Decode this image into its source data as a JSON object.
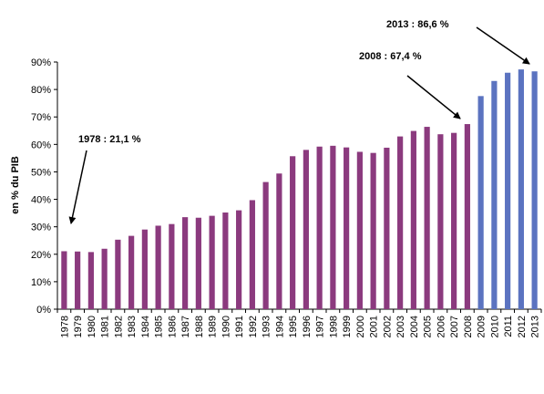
{
  "chart_data": {
    "type": "bar",
    "title": "",
    "xlabel": "",
    "ylabel": "en % du PIB",
    "ylim": [
      0,
      90
    ],
    "yticks": [
      "0%",
      "10%",
      "20%",
      "30%",
      "40%",
      "50%",
      "60%",
      "70%",
      "80%",
      "90%"
    ],
    "grid": false,
    "legend": "none",
    "categories": [
      "1978",
      "1979",
      "1980",
      "1981",
      "1982",
      "1983",
      "1984",
      "1985",
      "1986",
      "1987",
      "1988",
      "1989",
      "1990",
      "1991",
      "1992",
      "1993",
      "1994",
      "1995",
      "1996",
      "1997",
      "1998",
      "1999",
      "2000",
      "2001",
      "2002",
      "2003",
      "2004",
      "2005",
      "2006",
      "2007",
      "2008",
      "2009",
      "2010",
      "2011",
      "2012",
      "2013"
    ],
    "values": [
      21.1,
      21.0,
      20.8,
      22.0,
      25.3,
      26.7,
      29.0,
      30.4,
      31.0,
      33.5,
      33.3,
      34.0,
      35.2,
      36.0,
      39.7,
      46.3,
      49.4,
      55.7,
      58.0,
      59.2,
      59.5,
      58.9,
      57.3,
      56.9,
      58.8,
      62.9,
      64.9,
      66.4,
      63.7,
      64.2,
      67.4,
      77.6,
      83.1,
      86.1,
      87.3,
      86.6
    ],
    "colors": {
      "historical": "#8B3A7E",
      "forecast": "#5B73C0"
    },
    "forecast_from": "2009",
    "annotations": [
      {
        "text": "1978 : 21,1 %",
        "category": "1978"
      },
      {
        "text": "2008 : 67,4 %",
        "category": "2008"
      },
      {
        "text": "2013 : 86,6 %",
        "category": "2013"
      }
    ]
  }
}
